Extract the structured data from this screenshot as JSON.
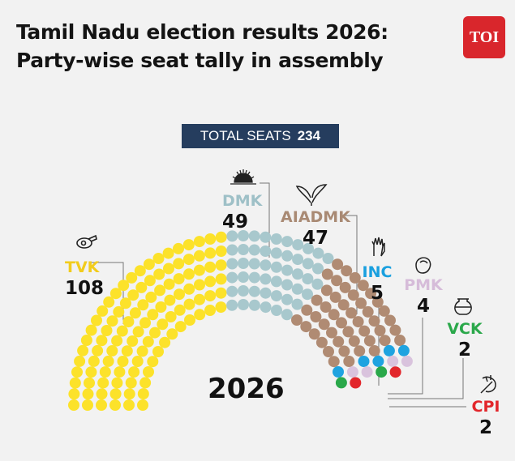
{
  "title": {
    "line1": "Tamil Nadu election results 2026:",
    "line2": "Party-wise seat tally in assembly"
  },
  "logo": {
    "text": "TOI",
    "color": "#d9262c"
  },
  "total": {
    "label": "TOTAL SEATS",
    "value": "234"
  },
  "year": "2026",
  "chart_data": {
    "type": "parliament",
    "title": "Tamil Nadu election results 2026: Party-wise seat tally in assembly",
    "total_seats": 234,
    "series": [
      {
        "name": "TVK",
        "seats": 108,
        "color": "#fce22a",
        "symbol": "whistle-icon"
      },
      {
        "name": "DMK",
        "seats": 49,
        "color": "#a8c8cd",
        "symbol": "rising-sun-icon"
      },
      {
        "name": "AIADMK",
        "seats": 47,
        "color": "#b08b73",
        "symbol": "two-leaves-icon"
      },
      {
        "name": "INC",
        "seats": 5,
        "color": "#1fa3e0",
        "symbol": "hand-icon"
      },
      {
        "name": "PMK",
        "seats": 4,
        "color": "#d9c3dd",
        "symbol": "mango-icon"
      },
      {
        "name": "VCK",
        "seats": 2,
        "color": "#2aa84a",
        "symbol": "pot-icon"
      },
      {
        "name": "CPI",
        "seats": 2,
        "color": "#e2262b",
        "symbol": "sickle-icon"
      }
    ],
    "labels": {
      "TVK": {
        "name": "TVK",
        "value": "108",
        "color": "#f2cc1c"
      },
      "DMK": {
        "name": "DMK",
        "value": "49",
        "color": "#9ec0c7"
      },
      "AIADMK": {
        "name": "AIADMK",
        "value": "47",
        "color": "#a98a74"
      },
      "INC": {
        "name": "INC",
        "value": "5",
        "color": "#1aa0df"
      },
      "PMK": {
        "name": "PMK",
        "value": "4",
        "color": "#d6bcd9"
      },
      "VCK": {
        "name": "VCK",
        "value": "2",
        "color": "#2aa84a"
      },
      "CPI": {
        "name": "CPI",
        "value": "2",
        "color": "#e2262b"
      }
    }
  }
}
